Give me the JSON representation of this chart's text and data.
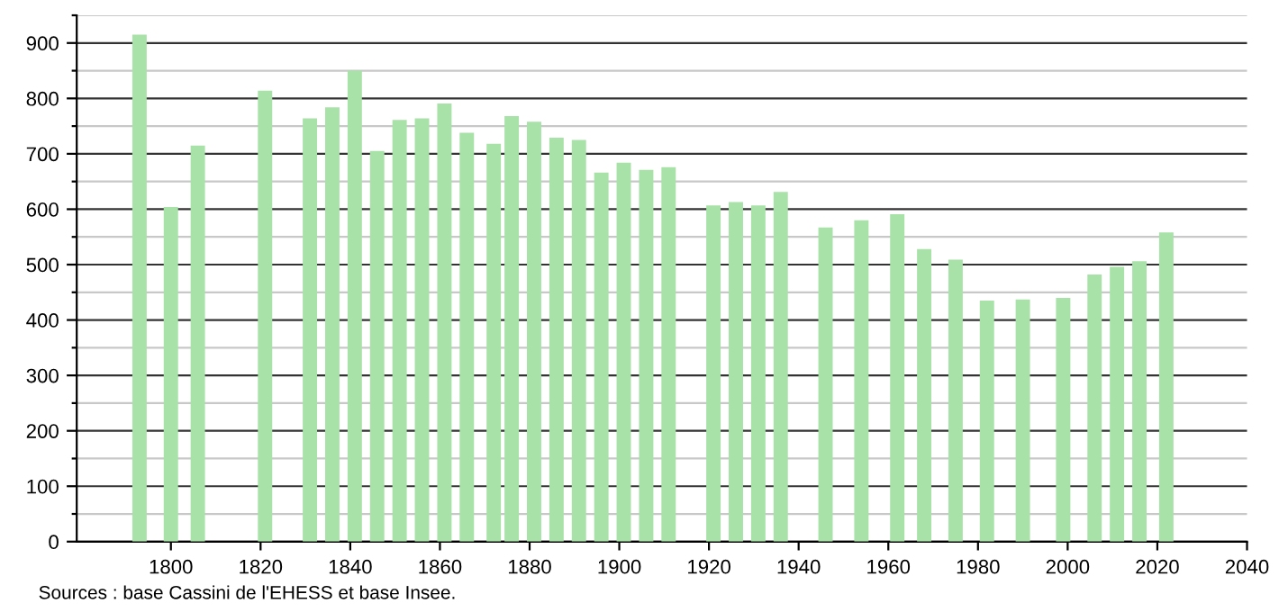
{
  "chart_data": {
    "type": "bar",
    "x": [
      1793,
      1800,
      1806,
      1821,
      1831,
      1836,
      1841,
      1846,
      1851,
      1856,
      1861,
      1866,
      1872,
      1876,
      1881,
      1886,
      1891,
      1896,
      1901,
      1906,
      1911,
      1921,
      1926,
      1931,
      1936,
      1946,
      1954,
      1962,
      1968,
      1975,
      1982,
      1990,
      1999,
      2006,
      2011,
      2016,
      2022
    ],
    "values": [
      915,
      604,
      715,
      814,
      764,
      784,
      850,
      705,
      761,
      764,
      791,
      738,
      718,
      768,
      758,
      729,
      725,
      666,
      684,
      671,
      676,
      607,
      613,
      607,
      631,
      567,
      580,
      591,
      528,
      509,
      435,
      437,
      440,
      482,
      496,
      506,
      558
    ],
    "color": "#a8e2a8",
    "xlim": [
      1779,
      2040
    ],
    "xticks": [
      1800,
      1820,
      1840,
      1860,
      1880,
      1900,
      1920,
      1940,
      1960,
      1980,
      2000,
      2020,
      2040
    ],
    "ylim": [
      0,
      950
    ],
    "yticks": [
      0,
      {
        "value": 50,
        "label": null
      },
      100,
      {
        "value": 150,
        "label": null
      },
      200,
      {
        "value": 250,
        "label": null
      },
      300,
      {
        "value": 350,
        "label": null
      },
      400,
      {
        "value": 450,
        "label": null
      },
      500,
      {
        "value": 550,
        "label": null
      },
      600,
      {
        "value": 650,
        "label": null
      },
      700,
      {
        "value": 750,
        "label": null
      },
      800,
      {
        "value": 850,
        "label": null
      },
      900,
      {
        "value": 950,
        "label": null
      }
    ],
    "grid": "y",
    "annotations": [
      "Sources : base Cassini de l'EHESS et base Insee."
    ]
  }
}
